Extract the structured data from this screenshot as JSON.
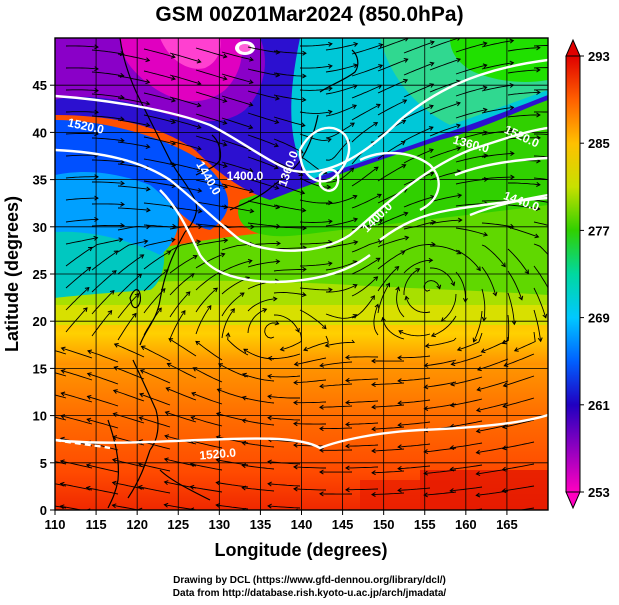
{
  "title": "GSM 00Z01Mar2024 (850.0hPa)",
  "axes": {
    "xlabel": "Longitude (degrees)",
    "ylabel": "Latitude  (degrees)",
    "xlim": [
      110,
      170
    ],
    "ylim": [
      0,
      50
    ],
    "xticks": [
      "110",
      "115",
      "120",
      "125",
      "130",
      "135",
      "140",
      "145",
      "150",
      "155",
      "160",
      "165"
    ],
    "yticks": [
      "0",
      "5",
      "10",
      "15",
      "20",
      "25",
      "30",
      "35",
      "40",
      "45"
    ]
  },
  "colorbar": {
    "labels": [
      "293",
      "285",
      "277",
      "269",
      "261",
      "253"
    ],
    "max": 293,
    "min": 253,
    "stops": [
      "#e00000",
      "#ff6000",
      "#ffc000",
      "#c8e000",
      "#30d000",
      "#00d8a0",
      "#00c8ff",
      "#0060ff",
      "#2000c0",
      "#9000c0",
      "#ff00c0"
    ]
  },
  "contour_labels": [
    {
      "text": "1520.0"
    },
    {
      "text": "1440.0"
    },
    {
      "text": "1400.0"
    },
    {
      "text": "1360.0"
    },
    {
      "text": "1400.0"
    },
    {
      "text": "1360.0"
    },
    {
      "text": "1520.0"
    },
    {
      "text": "1440.0"
    },
    {
      "text": "1520.0"
    }
  ],
  "credits": {
    "line1": "Drawing by DCL (https://www.gfd-dennou.org/library/dcl/)",
    "line2": "Data from http://database.rish.kyoto-u.ac.jp/arch/jmadata/"
  }
}
